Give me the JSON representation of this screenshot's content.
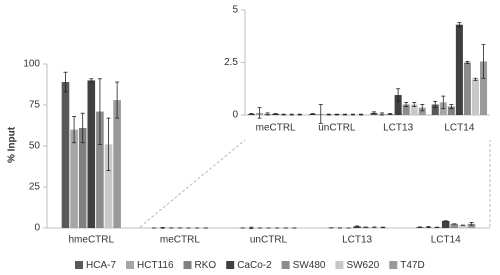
{
  "chart_data": [
    {
      "type": "bar",
      "y_label": "% Input",
      "categories": [
        "hmeCTRL",
        "meCTRL",
        "unCTRL",
        "LCT13",
        "LCT14"
      ],
      "ylim": [
        0,
        100
      ],
      "yticks": [
        0,
        25,
        50,
        75,
        100
      ],
      "grid": false,
      "legend": "bottom",
      "series": [
        {
          "name": "HCA-7",
          "color": "#595959",
          "values": [
            89,
            0.05,
            0.05,
            0.1,
            0.5
          ],
          "errors": [
            6,
            0.02,
            0.02,
            0.05,
            0.15
          ]
        },
        {
          "name": "HCT116",
          "color": "#a6a6a6",
          "values": [
            60,
            0.1,
            0.05,
            0.05,
            0.6
          ],
          "errors": [
            8,
            0.25,
            0.45,
            0.05,
            0.3
          ]
        },
        {
          "name": "RKO",
          "color": "#808080",
          "values": [
            61,
            0.05,
            0.02,
            0.05,
            0.4
          ],
          "errors": [
            9,
            0.05,
            0.02,
            0.02,
            0.1
          ]
        },
        {
          "name": "CaCo-2",
          "color": "#404040",
          "values": [
            90,
            0.05,
            0.02,
            0.95,
            4.3
          ],
          "errors": [
            1,
            0.02,
            0.02,
            0.3,
            0.1
          ]
        },
        {
          "name": "SW480",
          "color": "#8c8c8c",
          "values": [
            71,
            0.02,
            0.02,
            0.5,
            2.5
          ],
          "errors": [
            20,
            0.02,
            0.02,
            0.1,
            0.05
          ]
        },
        {
          "name": "SW620",
          "color": "#c8c8c8",
          "values": [
            51,
            0.02,
            0.02,
            0.5,
            1.7
          ],
          "errors": [
            16,
            0.02,
            0.02,
            0.1,
            0.05
          ]
        },
        {
          "name": "T47D",
          "color": "#9a9a9a",
          "values": [
            78,
            0.02,
            0.02,
            0.35,
            2.55
          ],
          "errors": [
            11,
            0.02,
            0.02,
            0.15,
            0.8
          ]
        }
      ]
    },
    {
      "type": "bar",
      "categories": [
        "meCTRL",
        "unCTRL",
        "LCT13",
        "LCT14"
      ],
      "ylim": [
        0,
        5
      ],
      "yticks": [
        0,
        2.5,
        5
      ],
      "grid": false,
      "series": [
        {
          "color": "#595959",
          "values": [
            0.05,
            0.05,
            0.1,
            0.5
          ],
          "errors": [
            0.02,
            0.02,
            0.05,
            0.15
          ]
        },
        {
          "color": "#a6a6a6",
          "values": [
            0.1,
            0.05,
            0.05,
            0.6
          ],
          "errors": [
            0.25,
            0.45,
            0.05,
            0.3
          ]
        },
        {
          "color": "#808080",
          "values": [
            0.05,
            0.02,
            0.05,
            0.4
          ],
          "errors": [
            0.05,
            0.02,
            0.02,
            0.1
          ]
        },
        {
          "color": "#404040",
          "values": [
            0.05,
            0.02,
            0.95,
            4.3
          ],
          "errors": [
            0.02,
            0.02,
            0.3,
            0.1
          ]
        },
        {
          "color": "#8c8c8c",
          "values": [
            0.02,
            0.02,
            0.5,
            2.5
          ],
          "errors": [
            0.02,
            0.02,
            0.1,
            0.05
          ]
        },
        {
          "color": "#c8c8c8",
          "values": [
            0.02,
            0.02,
            0.5,
            1.7
          ],
          "errors": [
            0.02,
            0.02,
            0.1,
            0.05
          ]
        },
        {
          "color": "#9a9a9a",
          "values": [
            0.02,
            0.02,
            0.35,
            2.55
          ],
          "errors": [
            0.02,
            0.02,
            0.15,
            0.8
          ]
        }
      ]
    }
  ]
}
